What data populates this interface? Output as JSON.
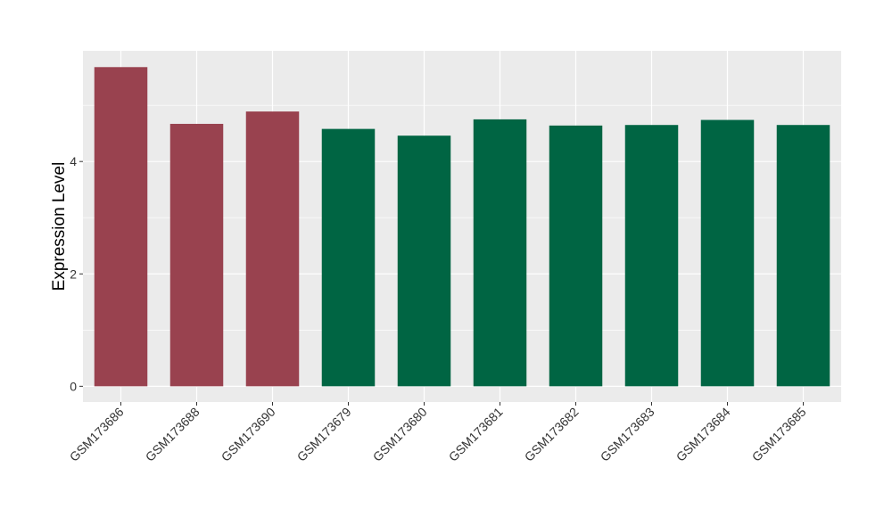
{
  "chart_data": {
    "type": "bar",
    "categories": [
      "GSM173686",
      "GSM173688",
      "GSM173690",
      "GSM173679",
      "GSM173680",
      "GSM173681",
      "GSM173682",
      "GSM173683",
      "GSM173684",
      "GSM173685"
    ],
    "values": [
      5.68,
      4.67,
      4.89,
      4.58,
      4.46,
      4.75,
      4.64,
      4.65,
      4.74,
      4.65
    ],
    "group": [
      "a",
      "a",
      "a",
      "b",
      "b",
      "b",
      "b",
      "b",
      "b",
      "b"
    ],
    "group_colors": {
      "a": "#99424F",
      "b": "#006543"
    },
    "title": "",
    "xlabel": "",
    "ylabel": "Expression Level",
    "ylim": [
      -0.28,
      5.97
    ],
    "yticks": [
      0,
      2,
      4
    ],
    "grid": true,
    "panel_background": "#EBEBEB",
    "grid_color": "#FFFFFF"
  }
}
